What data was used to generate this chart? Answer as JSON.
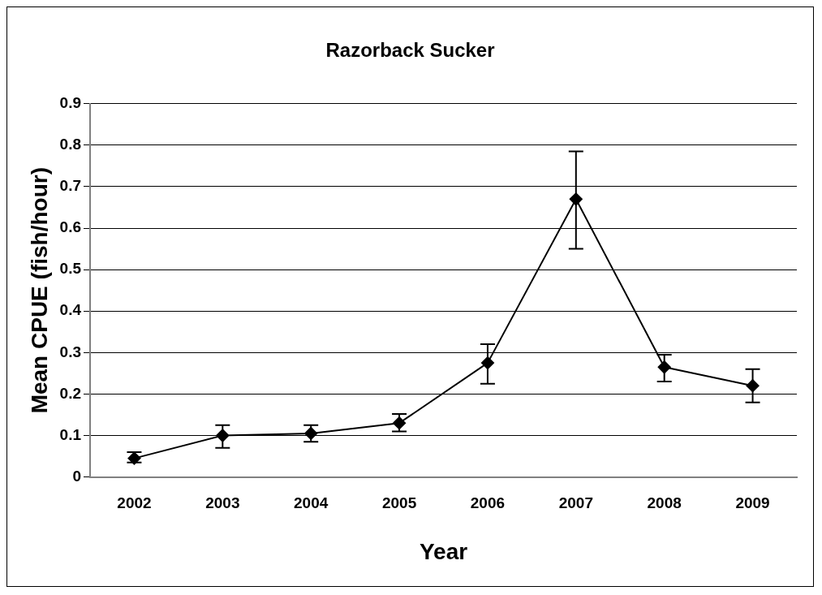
{
  "chart_data": {
    "type": "line",
    "title": "Razorback Sucker",
    "xlabel": "Year",
    "ylabel": "Mean CPUE (fish/hour)",
    "categories": [
      "2002",
      "2003",
      "2004",
      "2005",
      "2006",
      "2007",
      "2008",
      "2009"
    ],
    "series": [
      {
        "color": "#000000",
        "values": [
          0.045,
          0.1,
          0.105,
          0.13,
          0.275,
          0.67,
          0.265,
          0.22
        ],
        "errors": [
          [
            0.035,
            0.06
          ],
          [
            0.07,
            0.125
          ],
          [
            0.085,
            0.125
          ],
          [
            0.11,
            0.152
          ],
          [
            0.225,
            0.32
          ],
          [
            0.55,
            0.785
          ],
          [
            0.23,
            0.295
          ],
          [
            0.18,
            0.26
          ]
        ]
      }
    ],
    "ylim": [
      0,
      0.9
    ],
    "yticks": [
      0,
      0.1,
      0.2,
      0.3,
      0.4,
      0.5,
      0.6,
      0.7,
      0.8,
      0.9
    ],
    "grid": "y",
    "legend": false,
    "marker": "diamond",
    "line_style": "solid"
  }
}
